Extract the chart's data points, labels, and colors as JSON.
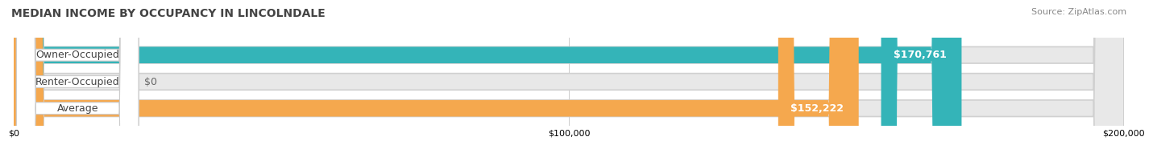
{
  "title": "MEDIAN INCOME BY OCCUPANCY IN LINCOLNDALE",
  "source": "Source: ZipAtlas.com",
  "categories": [
    "Owner-Occupied",
    "Renter-Occupied",
    "Average"
  ],
  "values": [
    170761,
    0,
    152222
  ],
  "bar_colors": [
    "#34b4b8",
    "#c0a8d8",
    "#f5a84e"
  ],
  "bar_bg_color": "#e8e8e8",
  "value_labels": [
    "$170,761",
    "$0",
    "$152,222"
  ],
  "xlim": [
    0,
    200000
  ],
  "xtick_labels": [
    "$0",
    "$100,000",
    "$200,000"
  ],
  "title_fontsize": 10,
  "source_fontsize": 8,
  "label_fontsize": 9,
  "bar_height": 0.62,
  "background_color": "#ffffff"
}
